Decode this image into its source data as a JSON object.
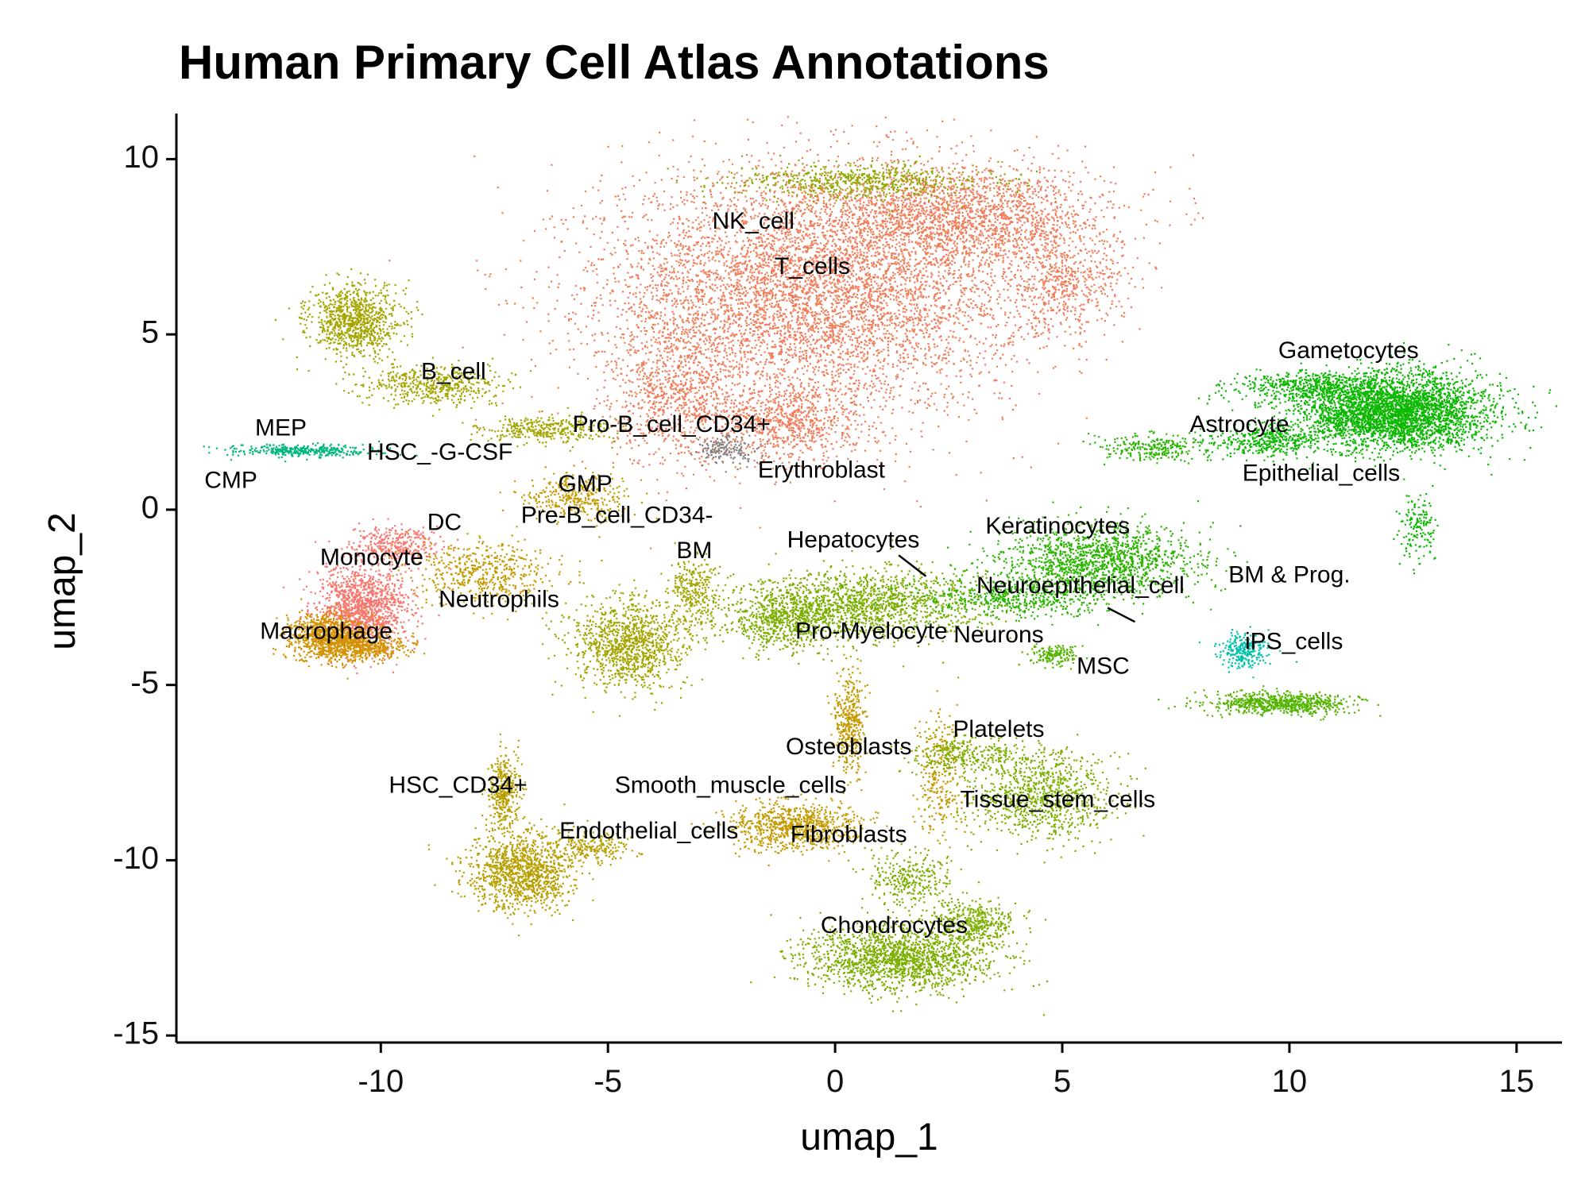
{
  "chart_data": {
    "type": "scatter",
    "title": "Human Primary Cell Atlas Annotations",
    "xlabel": "umap_1",
    "ylabel": "umap_2",
    "xlim": [
      -14.5,
      16
    ],
    "ylim": [
      -15.2,
      11.3
    ],
    "xticks": [
      -10,
      -5,
      0,
      5,
      10,
      15
    ],
    "yticks": [
      10,
      5,
      0,
      -5,
      -10,
      -15
    ],
    "xtick_labels": [
      "-10",
      "-5",
      "0",
      "5",
      "10",
      "15"
    ],
    "ytick_labels": [
      "10",
      "5",
      "0",
      "-5",
      "-10",
      "-15"
    ],
    "grid": false,
    "legend": "none",
    "clusters": [
      {
        "name": "T_cells",
        "color": "#F07D5A",
        "blobs": [
          [
            -0.5,
            6.3,
            4.2,
            3.2,
            6000
          ],
          [
            3,
            8.4,
            2.8,
            1.3,
            1800
          ],
          [
            5,
            6.4,
            1.2,
            1.3,
            500
          ],
          [
            -3.5,
            3.3,
            1.3,
            1.8,
            800
          ],
          [
            -1,
            2.5,
            1.4,
            1.0,
            700
          ]
        ]
      },
      {
        "name": "NK_cell",
        "color": "#8FAA00",
        "blobs": [
          [
            0.6,
            9.4,
            2.5,
            0.45,
            600
          ]
        ]
      },
      {
        "name": "B_cell",
        "color": "#A3A500",
        "blobs": [
          [
            -10.6,
            5.4,
            0.9,
            0.9,
            900
          ],
          [
            -8.8,
            3.6,
            1.4,
            0.5,
            500
          ],
          [
            -6.4,
            2.3,
            1.3,
            0.35,
            350
          ]
        ]
      },
      {
        "name": "MEP",
        "color": "#00B67C",
        "blobs": [
          [
            -11.8,
            1.7,
            1.5,
            0.16,
            350
          ]
        ]
      },
      {
        "name": "Monocyte",
        "color": "#F8766D",
        "blobs": [
          [
            -10.4,
            -2.8,
            0.9,
            1.1,
            1300
          ],
          [
            -9.7,
            -1.0,
            0.9,
            0.45,
            350
          ]
        ]
      },
      {
        "name": "Macrophage",
        "color": "#D39200",
        "blobs": [
          [
            -11.2,
            -3.6,
            0.8,
            0.6,
            900
          ],
          [
            -10.3,
            -3.9,
            0.9,
            0.35,
            400
          ]
        ]
      },
      {
        "name": "Neutrophils",
        "color": "#C49A00",
        "blobs": [
          [
            -7.8,
            -1.8,
            1.4,
            0.8,
            500
          ],
          [
            -5.7,
            0.4,
            1.1,
            0.6,
            350
          ]
        ]
      },
      {
        "name": "BM",
        "color": "#A3A500",
        "blobs": [
          [
            -4.6,
            -3.8,
            1.1,
            1.2,
            1100
          ],
          [
            -3.1,
            -2.4,
            0.5,
            1.0,
            300
          ]
        ]
      },
      {
        "name": "Erythroblast",
        "color": "#7F7F7F",
        "blobs": [
          [
            -2.4,
            1.7,
            0.6,
            0.4,
            150
          ]
        ]
      },
      {
        "name": "Pro-Myelocyte",
        "color": "#7CAE00",
        "blobs": [
          [
            0.5,
            -2.7,
            2.4,
            0.9,
            1500
          ],
          [
            -1.2,
            -3.2,
            1.0,
            0.7,
            500
          ]
        ]
      },
      {
        "name": "Keratinocytes",
        "color": "#2BB400",
        "blobs": [
          [
            5.8,
            -1.4,
            2.0,
            0.9,
            1400
          ],
          [
            4.0,
            -2.5,
            1.8,
            0.5,
            500
          ],
          [
            7.0,
            1.8,
            1.0,
            0.35,
            250
          ]
        ]
      },
      {
        "name": "Gametocytes",
        "color": "#0CB702",
        "blobs": [
          [
            12.3,
            2.8,
            1.9,
            1.0,
            3500
          ],
          [
            10.5,
            3.5,
            1.6,
            0.4,
            500
          ],
          [
            9.5,
            2.0,
            1.2,
            0.4,
            400
          ],
          [
            12.8,
            -0.5,
            0.35,
            1.0,
            150
          ]
        ]
      },
      {
        "name": "MSC",
        "color": "#53B400",
        "blobs": [
          [
            9.8,
            -5.5,
            1.4,
            0.28,
            700
          ],
          [
            4.8,
            -4.1,
            0.5,
            0.3,
            150
          ]
        ]
      },
      {
        "name": "iPS_cells",
        "color": "#00C1A9",
        "blobs": [
          [
            9.0,
            -4.0,
            0.5,
            0.45,
            250
          ]
        ]
      },
      {
        "name": "HSC_CD34+",
        "color": "#B79F00",
        "blobs": [
          [
            -6.9,
            -10.3,
            1.1,
            1.0,
            1200
          ],
          [
            -7.3,
            -8.0,
            0.3,
            1.0,
            350
          ],
          [
            -5.3,
            -9.6,
            0.8,
            0.35,
            200
          ]
        ]
      },
      {
        "name": "Fibroblasts",
        "color": "#C49A00",
        "blobs": [
          [
            -0.9,
            -9.0,
            1.3,
            0.6,
            800
          ],
          [
            0.3,
            -6.0,
            0.3,
            1.3,
            400
          ],
          [
            2.3,
            -7.5,
            0.5,
            1.6,
            300
          ]
        ]
      },
      {
        "name": "Tissue_stem_cells",
        "color": "#7CAE00",
        "blobs": [
          [
            4.6,
            -8.1,
            1.4,
            1.1,
            900
          ],
          [
            2.9,
            -7.0,
            1.2,
            0.5,
            300
          ]
        ]
      },
      {
        "name": "Chondrocytes",
        "color": "#7CAE00",
        "blobs": [
          [
            1.4,
            -12.8,
            1.9,
            0.8,
            1600
          ],
          [
            3.0,
            -11.8,
            0.9,
            0.6,
            400
          ],
          [
            1.6,
            -10.5,
            0.8,
            0.7,
            300
          ]
        ]
      }
    ],
    "labels": [
      {
        "text": "NK_cell",
        "x": -1.8,
        "y": 8.2
      },
      {
        "text": "T_cells",
        "x": -0.5,
        "y": 6.9
      },
      {
        "text": "B_cell",
        "x": -8.4,
        "y": 3.9
      },
      {
        "text": "MEP",
        "x": -12.2,
        "y": 2.3
      },
      {
        "text": "HSC_-G-CSF",
        "x": -8.7,
        "y": 1.6
      },
      {
        "text": "CMP",
        "x": -13.3,
        "y": 0.8
      },
      {
        "text": "Pro-B_cell_CD34+",
        "x": -3.6,
        "y": 2.4
      },
      {
        "text": "GMP",
        "x": -5.5,
        "y": 0.7
      },
      {
        "text": "Erythroblast",
        "x": -0.3,
        "y": 1.1
      },
      {
        "text": "DC",
        "x": -8.6,
        "y": -0.4
      },
      {
        "text": "Pre-B_cell_CD34-",
        "x": -4.8,
        "y": -0.2
      },
      {
        "text": "Monocyte",
        "x": -10.2,
        "y": -1.4
      },
      {
        "text": "BM",
        "x": -3.1,
        "y": -1.2
      },
      {
        "text": "Hepatocytes",
        "x": 0.4,
        "y": -0.9
      },
      {
        "text": "Keratinocytes",
        "x": 4.9,
        "y": -0.5
      },
      {
        "text": "Neuroepithelial_cell",
        "x": 5.4,
        "y": -2.2
      },
      {
        "text": "BM & Prog.",
        "x": 10.0,
        "y": -1.9
      },
      {
        "text": "Neutrophils",
        "x": -7.4,
        "y": -2.6
      },
      {
        "text": "Pro-Myelocyte",
        "x": 0.8,
        "y": -3.5
      },
      {
        "text": "Neurons",
        "x": 3.6,
        "y": -3.6
      },
      {
        "text": "iPS_cells",
        "x": 10.1,
        "y": -3.8
      },
      {
        "text": "MSC",
        "x": 5.9,
        "y": -4.5
      },
      {
        "text": "Macrophage",
        "x": -11.2,
        "y": -3.5
      },
      {
        "text": "Gametocytes",
        "x": 11.3,
        "y": 4.5
      },
      {
        "text": "Astrocyte",
        "x": 8.9,
        "y": 2.4
      },
      {
        "text": "Epithelial_cells",
        "x": 10.7,
        "y": 1.0
      },
      {
        "text": "Platelets",
        "x": 3.6,
        "y": -6.3
      },
      {
        "text": "Osteoblasts",
        "x": 0.3,
        "y": -6.8
      },
      {
        "text": "HSC_CD34+",
        "x": -8.3,
        "y": -7.9
      },
      {
        "text": "Smooth_muscle_cells",
        "x": -2.3,
        "y": -7.9
      },
      {
        "text": "Tissue_stem_cells",
        "x": 4.9,
        "y": -8.3
      },
      {
        "text": "Endothelial_cells",
        "x": -4.1,
        "y": -9.2
      },
      {
        "text": "Fibroblasts",
        "x": 0.3,
        "y": -9.3
      },
      {
        "text": "Chondrocytes",
        "x": 1.3,
        "y": -11.9
      }
    ],
    "leader_lines": [
      {
        "from": [
          1.4,
          -1.3
        ],
        "to": [
          2.0,
          -1.9
        ]
      },
      {
        "from": [
          6.0,
          -2.8
        ],
        "to": [
          6.6,
          -3.2
        ]
      }
    ]
  }
}
